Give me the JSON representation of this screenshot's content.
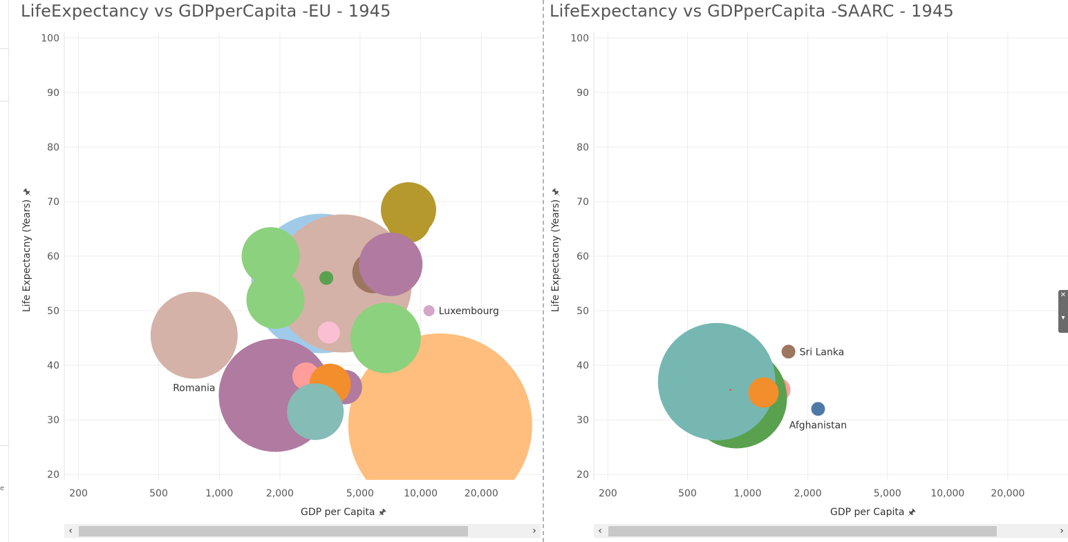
{
  "left_panel": {
    "title": "LifeExpectancy vs GDPperCapita -EU - 1945",
    "xlabel": "GDP per Capita",
    "ylabel": "Life Expectacny (Years)"
  },
  "right_panel": {
    "title": "LifeExpectancy vs GDPperCapita -SAARC - 1945",
    "xlabel": "GDP per Capita",
    "ylabel": "Life Expectacny (Years)"
  },
  "icons": {
    "pin": "pin-icon",
    "scroll_left": "chevron-left-icon",
    "scroll_right": "chevron-right-icon"
  },
  "chart_data": [
    {
      "type": "scatter",
      "title": "LifeExpectancy vs GDPperCapita -EU - 1945",
      "xlabel": "GDP per Capita",
      "ylabel": "Life Expectacny (Years)",
      "x_scale": "log",
      "xlim": [
        170,
        40000
      ],
      "ylim": [
        19,
        101
      ],
      "x_ticks": [
        200,
        500,
        1000,
        2000,
        5000,
        10000,
        20000
      ],
      "x_tick_labels": [
        "200",
        "500",
        "1,000",
        "2,000",
        "5,000",
        "10,000",
        "20,000"
      ],
      "y_ticks": [
        20,
        30,
        40,
        50,
        60,
        70,
        80,
        90,
        100
      ],
      "grid": true,
      "points": [
        {
          "x": 12500,
          "y": 29,
          "r": 133,
          "color": "#FFBE7D",
          "label": ""
        },
        {
          "x": 3200,
          "y": 55,
          "r": 101,
          "color": "#A0CBE8",
          "label": ""
        },
        {
          "x": 1900,
          "y": 34.5,
          "r": 82,
          "color": "#B07AA1",
          "label": ""
        },
        {
          "x": 4200,
          "y": 36,
          "r": 25,
          "color": "#B07AA1",
          "label": ""
        },
        {
          "x": 4100,
          "y": 55,
          "r": 100,
          "color": "#D4B2A7",
          "label": ""
        },
        {
          "x": 8700,
          "y": 66.5,
          "r": 32,
          "color": "#B6992D",
          "label": ""
        },
        {
          "x": 8700,
          "y": 68.5,
          "r": 40,
          "color": "#B6992D",
          "label": ""
        },
        {
          "x": 5800,
          "y": 57,
          "r": 30,
          "color": "#9D7660",
          "label": ""
        },
        {
          "x": 7100,
          "y": 58.5,
          "r": 46,
          "color": "#B07AA1",
          "label": ""
        },
        {
          "x": 1800,
          "y": 60,
          "r": 42,
          "color": "#8CD17D",
          "label": ""
        },
        {
          "x": 1900,
          "y": 52,
          "r": 42,
          "color": "#8CD17D",
          "label": ""
        },
        {
          "x": 6700,
          "y": 45,
          "r": 51,
          "color": "#8CD17D",
          "label": ""
        },
        {
          "x": 750,
          "y": 45.5,
          "r": 63,
          "color": "#D4B2A7",
          "label": "Romania"
        },
        {
          "x": 2700,
          "y": 38,
          "r": 20,
          "color": "#FF9D9A",
          "label": ""
        },
        {
          "x": 3500,
          "y": 46,
          "r": 16,
          "color": "#FABFD2",
          "label": ""
        },
        {
          "x": 3550,
          "y": 36.5,
          "r": 30,
          "color": "#F28E2B",
          "label": ""
        },
        {
          "x": 3000,
          "y": 31.5,
          "r": 41,
          "color": "#86BCB6",
          "label": ""
        },
        {
          "x": 3400,
          "y": 56,
          "r": 10,
          "color": "#59A14F",
          "label": ""
        },
        {
          "x": 11000,
          "y": 50,
          "r": 8,
          "color": "#D4A6C8",
          "label": "Luxembourg"
        }
      ]
    },
    {
      "type": "scatter",
      "title": "LifeExpectancy vs GDPperCapita -SAARC - 1945",
      "xlabel": "GDP per Capita",
      "ylabel": "Life Expectacny (Years)",
      "x_scale": "log",
      "xlim": [
        170,
        40000
      ],
      "ylim": [
        19,
        101
      ],
      "x_ticks": [
        200,
        500,
        1000,
        2000,
        5000,
        10000,
        20000
      ],
      "x_tick_labels": [
        "200",
        "500",
        "1,000",
        "2,000",
        "5,000",
        "10,000",
        "20,000"
      ],
      "y_ticks": [
        20,
        30,
        40,
        50,
        60,
        70,
        80,
        90,
        100
      ],
      "grid": true,
      "points": [
        {
          "x": 1430,
          "y": 35.5,
          "r": 17,
          "color": "#FF9D9A",
          "label": ""
        },
        {
          "x": 880,
          "y": 34,
          "r": 73,
          "color": "#59A14F",
          "label": ""
        },
        {
          "x": 700,
          "y": 37,
          "r": 85,
          "color": "#76B7B2",
          "label": ""
        },
        {
          "x": 820,
          "y": 35.5,
          "r": 1.5,
          "color": "#E15759",
          "label": ""
        },
        {
          "x": 1200,
          "y": 35,
          "r": 22,
          "color": "#F28E2B",
          "label": ""
        },
        {
          "x": 1600,
          "y": 42.5,
          "r": 10,
          "color": "#9D7660",
          "label": "Sri Lanka"
        },
        {
          "x": 2250,
          "y": 32,
          "r": 10,
          "color": "#4E79A7",
          "label": "Afghanistan"
        }
      ]
    }
  ]
}
